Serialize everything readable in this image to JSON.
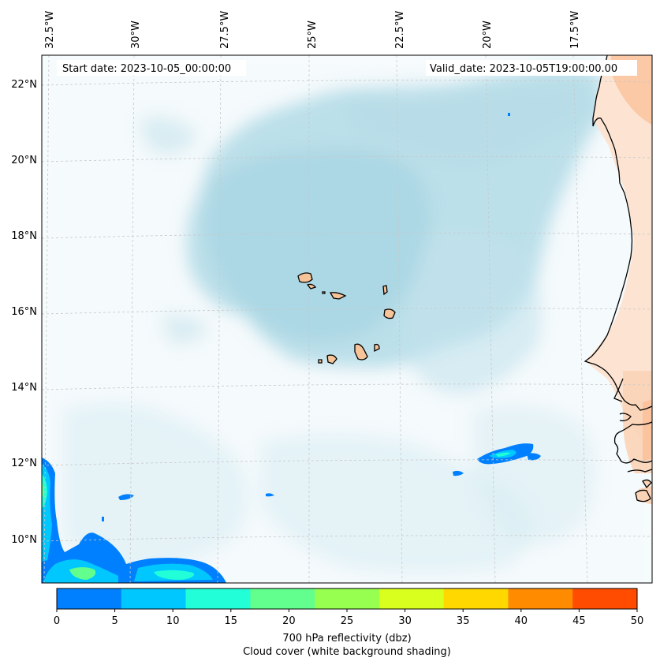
{
  "top_labels": {
    "start": "Start date: 2023-10-05_00:00:00",
    "valid": "Valid_date: 2023-10-05T19:00:00.00"
  },
  "lon_labels": [
    "32.5°W",
    "30°W",
    "27.5°W",
    "25°W",
    "22.5°W",
    "20°W",
    "17.5°W"
  ],
  "lat_labels": [
    "22°N",
    "20°N",
    "18°N",
    "16°N",
    "14°N",
    "12°N",
    "10°N"
  ],
  "colorbar": {
    "ticks": [
      "0",
      "5",
      "10",
      "15",
      "20",
      "25",
      "30",
      "35",
      "40",
      "45",
      "50"
    ],
    "colors": [
      "#0080ff",
      "#00c8ff",
      "#22ffd8",
      "#62ff8e",
      "#96ff50",
      "#d8ff1e",
      "#ffd800",
      "#ff8c00",
      "#ff4c00"
    ],
    "label_line1": "700 hPa reflectivity (dbz)",
    "label_line2": "Cloud cover (white background shading)"
  },
  "colors": {
    "cloud": "#b2dbe6",
    "land": "#fbc9a6",
    "island": "#f7c49a",
    "grid": "#c8c8c8"
  }
}
